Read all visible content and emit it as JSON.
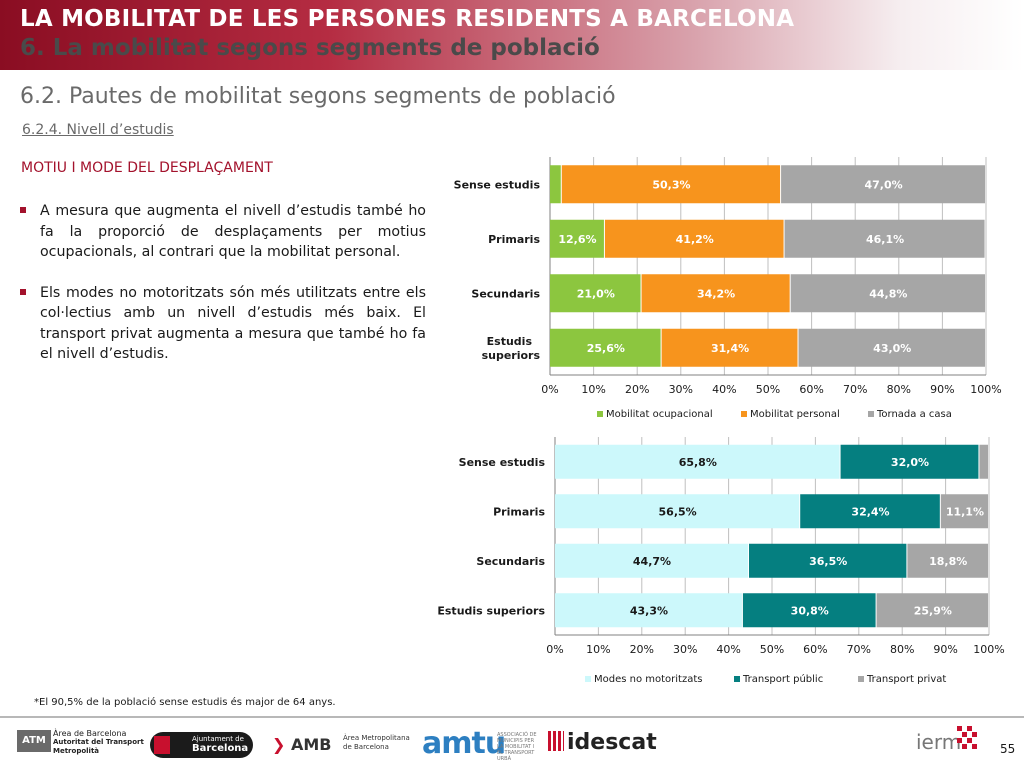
{
  "header": {
    "title": "LA MOBILITAT DE LES PERSONES RESIDENTS A BARCELONA",
    "subtitle": "6. La mobilitat segons segments de població"
  },
  "section": {
    "title": "6.2. Pautes de mobilitat segons segments de població",
    "subsection": "6.2.4. Nivell d’estudis"
  },
  "text": {
    "heading": "MOTIU I MODE DEL DESPLAÇAMENT",
    "bullets": [
      "A mesura que augmenta el nivell d’estudis també ho fa la proporció de desplaçaments per motius ocupacionals, al contrari que la mobilitat personal.",
      "Els modes no motoritzats són més utilitzats entre els col·lectius amb un nivell d’estudis més baix. El transport privat augmenta a mesura que també ho fa el nivell d’estudis."
    ]
  },
  "chart_data": [
    {
      "type": "bar",
      "orientation": "horizontal",
      "stacked": true,
      "categories": [
        "Sense estudis",
        "Primaris",
        "Secundaris",
        "Estudis superiors"
      ],
      "series": [
        {
          "name": "Mobilitat ocupacional",
          "color": "#8cc63f",
          "values": [
            2.7,
            12.6,
            21.0,
            25.6
          ],
          "labels": [
            "",
            "12,6%",
            "21,0%",
            "25,6%"
          ]
        },
        {
          "name": "Mobilitat personal",
          "color": "#f7941d",
          "values": [
            50.3,
            41.2,
            34.2,
            31.4
          ],
          "labels": [
            "50,3%",
            "41,2%",
            "34,2%",
            "31,4%"
          ]
        },
        {
          "name": "Tornada a casa",
          "color": "#a6a6a6",
          "values": [
            47.0,
            46.1,
            44.8,
            43.0
          ],
          "labels": [
            "47,0%",
            "46,1%",
            "44,8%",
            "43,0%"
          ]
        }
      ],
      "xlim": [
        0,
        100
      ],
      "ticks": [
        "0%",
        "10%",
        "20%",
        "30%",
        "40%",
        "50%",
        "60%",
        "70%",
        "80%",
        "90%",
        "100%"
      ],
      "grid": true,
      "legend": "bottom"
    },
    {
      "type": "bar",
      "orientation": "horizontal",
      "stacked": true,
      "categories": [
        "Sense estudis",
        "Primaris",
        "Secundaris",
        "Estudis superiors"
      ],
      "series": [
        {
          "name": "Modes no motoritzats",
          "color": "#ccf8fb",
          "values": [
            65.8,
            56.5,
            44.7,
            43.3
          ],
          "labels": [
            "65,8%",
            "56,5%",
            "44,7%",
            "43,3%"
          ]
        },
        {
          "name": "Transport públic",
          "color": "#057f80",
          "values": [
            32.0,
            32.4,
            36.5,
            30.8
          ],
          "labels": [
            "32,0%",
            "32,4%",
            "36,5%",
            "30,8%"
          ]
        },
        {
          "name": "Transport privat",
          "color": "#a6a6a6",
          "values": [
            2.2,
            11.1,
            18.8,
            25.9
          ],
          "labels": [
            "",
            "11,1%",
            "18,8%",
            "25,9%"
          ]
        }
      ],
      "xlim": [
        0,
        100
      ],
      "ticks": [
        "0%",
        "10%",
        "20%",
        "30%",
        "40%",
        "50%",
        "60%",
        "70%",
        "80%",
        "90%",
        "100%"
      ],
      "grid": true,
      "legend": "bottom"
    }
  ],
  "chart_category_labels": [
    [
      "Sense estudis",
      "Primaris",
      "Secundaris",
      [
        "Estudis",
        "superiors"
      ]
    ],
    [
      "Sense estudis",
      "Primaris",
      "Secundaris",
      [
        "Estudis superiors"
      ]
    ]
  ],
  "footnote": "*El 90,5% de la població sense estudis és major de 64 anys.",
  "footer": {
    "page_number": "55",
    "logos": {
      "atm_box": "ATM",
      "atm_lines": [
        "Àrea de Barcelona",
        "Autoritat del Transport",
        "Metropolità"
      ],
      "bcn_lines": [
        "Ajuntament de",
        "Barcelona"
      ],
      "amb": "AMB",
      "amb_lines": [
        "Àrea Metropolitana",
        "de Barcelona"
      ],
      "amtu": "amtu",
      "amtu_sub": "ASSOCIACIÓ DE MUNICIPIS PER LA MOBILITAT I EL TRANSPORT URBÀ",
      "idescat": "idescat",
      "ierm": "ierm"
    }
  }
}
